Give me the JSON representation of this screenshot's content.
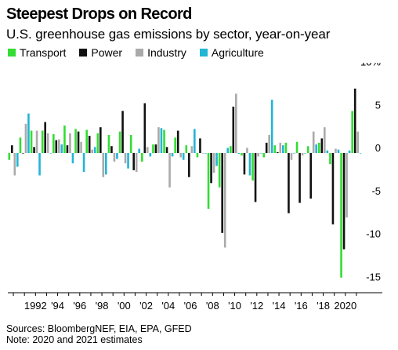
{
  "title": "Steepest Drops on Record",
  "subtitle": "U.S. greenhouse gas emissions by sector, year-on-year",
  "footer": {
    "sources": "Sources: BloombergNEF, EIA, EPA, GFED",
    "note": "Note: 2020 and 2021 estimates"
  },
  "chart_data": {
    "type": "bar",
    "title": "Steepest Drops on Record",
    "subtitle": "U.S. greenhouse gas emissions by sector, year-on-year",
    "x_tick_labels": [
      "1992",
      "'94",
      "'96",
      "'98",
      "'00",
      "'02",
      "'04",
      "'06",
      "'08",
      "'10",
      "'12",
      "'14",
      "'16",
      "'18",
      "2020"
    ],
    "y_tick_labels": [
      "10%",
      "5",
      "0",
      "-5",
      "-10",
      "-15"
    ],
    "ylim": [
      -16,
      11
    ],
    "grid": false,
    "legend_position": "top-left",
    "categories": [
      1990,
      1991,
      1992,
      1993,
      1994,
      1995,
      1996,
      1997,
      1998,
      1999,
      2000,
      2001,
      2002,
      2003,
      2004,
      2005,
      2006,
      2007,
      2008,
      2009,
      2010,
      2011,
      2012,
      2013,
      2014,
      2015,
      2016,
      2017,
      2018,
      2019,
      2020,
      2021
    ],
    "series": [
      {
        "name": "Transport",
        "color": "#33dd33",
        "values": [
          -0.8,
          1.8,
          2.6,
          2.6,
          2.2,
          3.2,
          2.8,
          2.7,
          2.3,
          2.1,
          2.5,
          2.1,
          -1.0,
          1.0,
          2.7,
          1.8,
          0.9,
          -0.5,
          -6.5,
          -4.0,
          0.8,
          -0.3,
          -3.2,
          -0.5,
          0.9,
          1.2,
          1.3,
          0.8,
          1.2,
          -1.3,
          -14.5,
          4.9
        ]
      },
      {
        "name": "Power",
        "color": "#111111",
        "values": [
          0.9,
          0.0,
          0.7,
          3.6,
          1.5,
          0.9,
          2.5,
          2.0,
          3.0,
          0.8,
          4.9,
          -2.0,
          5.8,
          1.0,
          0.7,
          2.6,
          -2.8,
          1.7,
          -3.5,
          -9.3,
          5.4,
          -2.5,
          -5.7,
          1.2,
          0.1,
          -7.0,
          -5.8,
          -5.3,
          1.7,
          -8.3,
          -11.2,
          7.5
        ]
      },
      {
        "name": "Industry",
        "color": "#aaaaaa",
        "values": [
          -2.6,
          3.4,
          2.6,
          2.3,
          1.6,
          2.3,
          1.3,
          0.4,
          -2.8,
          -1.0,
          -1.2,
          -2.2,
          0.7,
          3.0,
          -4.0,
          -0.5,
          0.8,
          0.0,
          -2.3,
          -11.0,
          6.9,
          0.6,
          -0.4,
          2.1,
          1.2,
          -0.8,
          -0.3,
          2.5,
          3.0,
          0.5,
          -7.5,
          2.5
        ]
      },
      {
        "name": "Agriculture",
        "color": "#22b5d5",
        "values": [
          -1.6,
          4.6,
          -2.6,
          0.0,
          1.0,
          -1.2,
          -2.2,
          0.7,
          -2.5,
          -0.7,
          -1.8,
          0.5,
          -0.4,
          2.9,
          -0.4,
          -0.8,
          2.8,
          0.0,
          -1.5,
          0.6,
          -0.1,
          -2.6,
          0.0,
          6.2,
          0.9,
          0.0,
          0.0,
          1.0,
          0.3,
          0.4,
          0.3,
          0.0
        ]
      }
    ]
  }
}
